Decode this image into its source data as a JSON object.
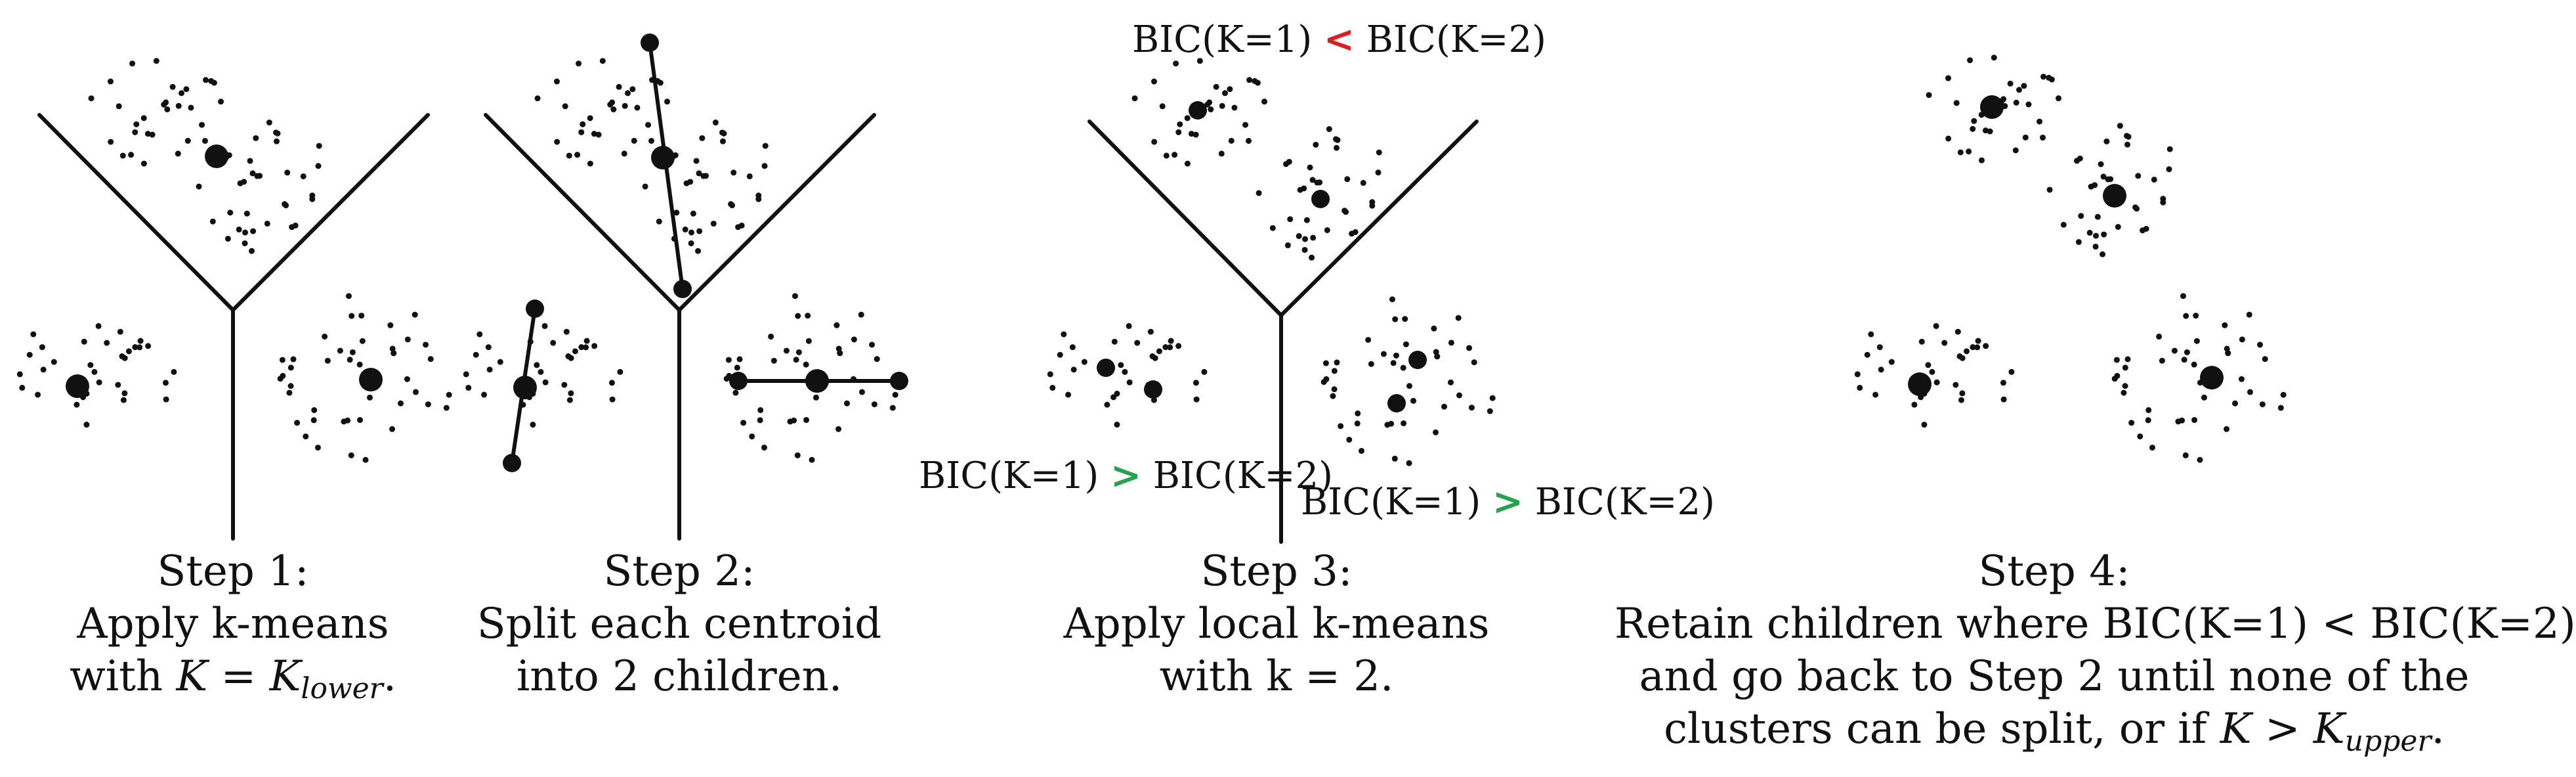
{
  "colors": {
    "ink": "#111111",
    "less_than": "#e41a1c",
    "greater_than": "#1fa64a"
  },
  "steps": [
    {
      "line1": "Step 1:",
      "line2": "Apply k-means",
      "line3_prefix": "with ",
      "line3_var": "K",
      "line3_eq": " = ",
      "line3_K": "K",
      "line3_sub": "lower",
      "line3_suffix": "."
    },
    {
      "line1": "Step 2:",
      "line2": "Split each centroid",
      "line3": "into 2 children."
    },
    {
      "line1": "Step 3:",
      "line2": "Apply local k-means",
      "line3": "with k = 2."
    },
    {
      "line1": "Step 4:",
      "line2": "Retain children where BIC(K=1) < BIC(K=2)",
      "line3": "and go back to Step 2 until none of the",
      "line4_prefix": "clusters can be split, or if ",
      "line4_var": "K",
      "line4_op": " > ",
      "line4_K": "K",
      "line4_sub": "upper",
      "line4_suffix": "."
    }
  ],
  "bic_labels": [
    {
      "left": "BIC(K=1)",
      "op": "<",
      "right": "BIC(K=2)",
      "op_color": "red"
    },
    {
      "left": "BIC(K=1)",
      "op": ">",
      "right": "BIC(K=2)",
      "op_color": "green"
    },
    {
      "left": "BIC(K=1)",
      "op": ">",
      "right": "BIC(K=2)",
      "op_color": "green"
    }
  ]
}
